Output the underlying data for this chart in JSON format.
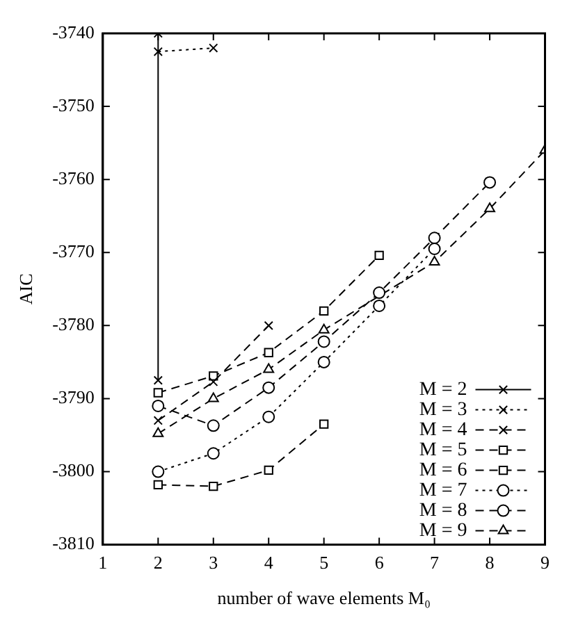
{
  "chart_data": {
    "type": "line",
    "xlabel": "number of wave elements M₀",
    "ylabel": "AIC",
    "xlim": [
      1,
      9
    ],
    "xticks": [
      1,
      2,
      3,
      4,
      5,
      6,
      7,
      8,
      9
    ],
    "ylim": [
      -3810,
      -3740
    ],
    "yticks": [
      -3810,
      -3800,
      -3790,
      -3780,
      -3770,
      -3760,
      -3750,
      -3740
    ],
    "legend": "bottom right",
    "grid": false,
    "series": [
      {
        "name": "M = 2",
        "color": "#000000",
        "marker": "cross",
        "line_style": "solid",
        "x": [
          2,
          2
        ],
        "values": [
          -3740,
          -3787.5
        ]
      },
      {
        "name": "M = 3",
        "color": "#000000",
        "marker": "cross",
        "line_style": "dotted",
        "x": [
          2,
          3
        ],
        "values": [
          -3742.5,
          -3742
        ]
      },
      {
        "name": "M = 4",
        "color": "#000000",
        "marker": "cross",
        "line_style": "dashed",
        "x": [
          2,
          3,
          4
        ],
        "values": [
          -3793,
          -3787.7,
          -3780
        ]
      },
      {
        "name": "M = 5",
        "color": "#000000",
        "marker": "square",
        "line_style": "dashed",
        "x": [
          2,
          3,
          4,
          5
        ],
        "values": [
          -3801.8,
          -3802,
          -3799.8,
          -3793.5
        ]
      },
      {
        "name": "M = 6",
        "color": "#000000",
        "marker": "square",
        "line_style": "dashed",
        "x": [
          2,
          3,
          4,
          5,
          6
        ],
        "values": [
          -3789.2,
          -3786.9,
          -3783.7,
          -3778,
          -3770.4
        ]
      },
      {
        "name": "M = 7",
        "color": "#000000",
        "marker": "circle",
        "line_style": "dotted",
        "x": [
          2,
          3,
          4,
          5,
          6,
          7
        ],
        "values": [
          -3800,
          -3797.5,
          -3792.5,
          -3785,
          -3777.3,
          -3769.5
        ]
      },
      {
        "name": "M = 8",
        "color": "#000000",
        "marker": "circle",
        "line_style": "dashed",
        "x": [
          2,
          3,
          4,
          5,
          6,
          7,
          8
        ],
        "values": [
          -3791,
          -3793.7,
          -3788.5,
          -3782.2,
          -3775.5,
          -3768,
          -3760.4
        ]
      },
      {
        "name": "M = 9",
        "color": "#000000",
        "marker": "triangle",
        "line_style": "dashed",
        "x": [
          2,
          3,
          4,
          5,
          6,
          7,
          8,
          9
        ],
        "values": [
          -3794.8,
          -3790,
          -3786,
          -3780.6,
          null,
          -3771.3,
          -3764,
          -3756
        ]
      }
    ]
  }
}
